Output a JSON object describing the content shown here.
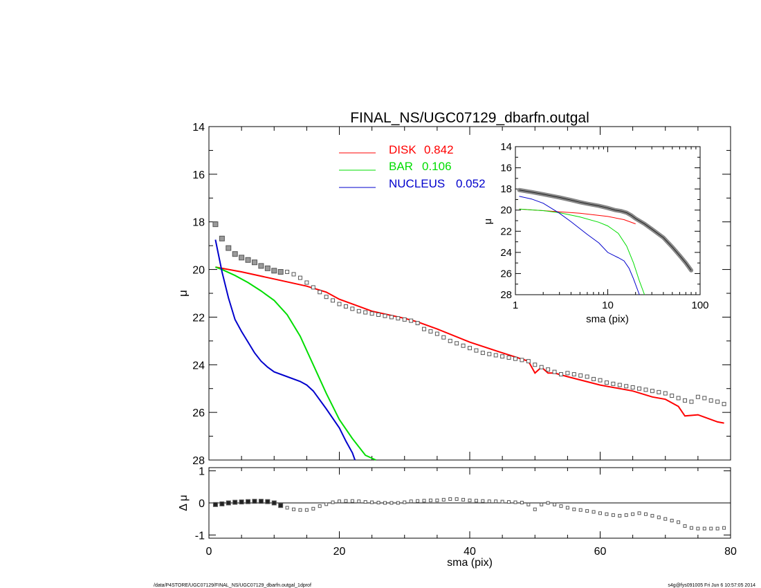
{
  "title": "FINAL_NS/UGC07129_dbarfn.outgal",
  "footer_left": "/data/P4STORE/UGC07129/FINAL_NS/UGC07129_dbarfn.outgal_1dprof",
  "footer_right": "s4g@fys091005  Fri Jun  6 10:57:05 2014",
  "colors": {
    "disk": "#ff0000",
    "bar": "#00dd00",
    "nucleus": "#0000cc",
    "data": "#555555"
  },
  "chart_data": [
    {
      "id": "main",
      "type": "line",
      "title": "FINAL_NS/UGC07129_dbarfn.outgal",
      "xlabel": "",
      "ylabel": "μ",
      "xlim": [
        0,
        80
      ],
      "ylim": [
        28,
        14
      ],
      "y_inverted": true,
      "x_ticks": [
        "0",
        "20",
        "40",
        "60",
        "80"
      ],
      "y_ticks": [
        "14",
        "16",
        "18",
        "20",
        "22",
        "24",
        "26",
        "28"
      ],
      "legend": [
        {
          "label": "DISK",
          "value": "0.842",
          "color": "#ff0000"
        },
        {
          "label": "BAR",
          "value": "0.106",
          "color": "#00dd00"
        },
        {
          "label": "NUCLEUS",
          "value": "0.052",
          "color": "#0000cc"
        }
      ],
      "series": [
        {
          "name": "DISK",
          "color": "#ff0000",
          "x": [
            1,
            5,
            10,
            15,
            18,
            20,
            25,
            30,
            32,
            35,
            40,
            45,
            49,
            50,
            51,
            52,
            53,
            55,
            60,
            65,
            68,
            70,
            72,
            73,
            75,
            78,
            79
          ],
          "y": [
            19.9,
            20.1,
            20.4,
            20.7,
            20.95,
            21.25,
            21.75,
            22.05,
            22.2,
            22.5,
            23.05,
            23.5,
            23.85,
            24.35,
            24.1,
            24.35,
            24.35,
            24.5,
            24.85,
            25.1,
            25.35,
            25.45,
            25.75,
            26.15,
            26.1,
            26.4,
            26.45
          ]
        },
        {
          "name": "BAR",
          "color": "#00dd00",
          "x": [
            1,
            2,
            4,
            6,
            8,
            10,
            12,
            14,
            16,
            18,
            20,
            22,
            24,
            25.6
          ],
          "y": [
            19.9,
            20.0,
            20.25,
            20.55,
            20.9,
            21.3,
            21.9,
            22.8,
            24.0,
            25.2,
            26.3,
            27.1,
            27.8,
            28.0
          ]
        },
        {
          "name": "NUCLEUS",
          "color": "#0000cc",
          "x": [
            1,
            2,
            3,
            4,
            5,
            6,
            7,
            8,
            9,
            10,
            12,
            14,
            15,
            16,
            18,
            20,
            21,
            22,
            22.4
          ],
          "y": [
            18.75,
            20.1,
            21.2,
            22.1,
            22.6,
            23.05,
            23.5,
            23.85,
            24.1,
            24.3,
            24.5,
            24.7,
            24.85,
            25.1,
            25.85,
            26.65,
            27.2,
            27.7,
            28.0
          ]
        },
        {
          "name": "data",
          "color": "#555555",
          "x": [
            1,
            2,
            3,
            4,
            5,
            6,
            7,
            8,
            9,
            10,
            11,
            12,
            13,
            14,
            15,
            16,
            17,
            18,
            19,
            20,
            21,
            22,
            23,
            24,
            25,
            26,
            27,
            28,
            29,
            30,
            31,
            32,
            33,
            34,
            35,
            36,
            37,
            38,
            39,
            40,
            41,
            42,
            43,
            44,
            45,
            46,
            47,
            48,
            49,
            50,
            51,
            52,
            53,
            54,
            55,
            56,
            57,
            58,
            59,
            60,
            61,
            62,
            63,
            64,
            65,
            66,
            67,
            68,
            69,
            70,
            71,
            72,
            73,
            74,
            75,
            76,
            77,
            78,
            79
          ],
          "y": [
            18.1,
            18.7,
            19.1,
            19.35,
            19.5,
            19.6,
            19.7,
            19.85,
            19.95,
            20.05,
            20.1,
            20.1,
            20.2,
            20.35,
            20.55,
            20.75,
            20.95,
            21.15,
            21.3,
            21.45,
            21.55,
            21.65,
            21.75,
            21.8,
            21.85,
            21.9,
            21.95,
            22.0,
            22.05,
            22.1,
            22.15,
            22.25,
            22.5,
            22.6,
            22.7,
            22.85,
            23.0,
            23.1,
            23.2,
            23.3,
            23.4,
            23.5,
            23.55,
            23.6,
            23.65,
            23.7,
            23.75,
            23.8,
            23.85,
            24.0,
            24.1,
            24.2,
            24.3,
            24.4,
            24.35,
            24.4,
            24.45,
            24.5,
            24.6,
            24.65,
            24.75,
            24.8,
            24.85,
            24.9,
            24.95,
            25.0,
            25.05,
            25.1,
            25.15,
            25.2,
            25.3,
            25.4,
            25.5,
            25.55,
            25.35,
            25.4,
            25.5,
            25.55,
            25.65
          ]
        }
      ]
    },
    {
      "id": "inset",
      "type": "line",
      "xlabel": "sma (pix)",
      "ylabel": "μ",
      "xscale": "log",
      "xlim": [
        1,
        100
      ],
      "ylim": [
        28,
        14
      ],
      "y_inverted": true,
      "x_ticks": [
        "1",
        "10",
        "100"
      ],
      "y_ticks": [
        "14",
        "16",
        "18",
        "20",
        "22",
        "24",
        "26",
        "28"
      ],
      "series": [
        {
          "name": "DISK",
          "color": "#ff0000",
          "x": [
            1.1,
            2,
            5,
            10,
            15,
            20
          ],
          "y": [
            19.9,
            20.05,
            20.3,
            20.6,
            20.9,
            21.3
          ]
        },
        {
          "name": "BAR",
          "color": "#00dd00",
          "x": [
            1.1,
            2,
            3,
            5,
            8,
            10,
            13,
            16,
            19,
            22,
            25
          ],
          "y": [
            19.9,
            20.05,
            20.25,
            20.65,
            21.15,
            21.5,
            22.2,
            23.4,
            25.0,
            26.7,
            28.0
          ]
        },
        {
          "name": "NUCLEUS",
          "color": "#0000cc",
          "x": [
            1.1,
            1.5,
            2,
            3,
            4,
            6,
            8,
            10,
            13,
            15,
            17,
            19,
            22
          ],
          "y": [
            18.7,
            18.95,
            19.35,
            20.3,
            21.1,
            22.3,
            23.1,
            24.0,
            24.5,
            24.8,
            25.5,
            26.5,
            28.0
          ]
        },
        {
          "name": "data",
          "color": "#555555",
          "x": [
            1.1,
            1.5,
            2,
            3,
            4,
            5,
            6,
            8,
            10,
            12,
            14,
            16,
            18,
            20,
            25,
            30,
            40,
            50,
            60,
            70,
            80
          ],
          "y": [
            18.1,
            18.3,
            18.5,
            18.8,
            19.05,
            19.25,
            19.4,
            19.6,
            19.8,
            20.0,
            20.1,
            20.25,
            20.5,
            20.8,
            21.3,
            21.8,
            22.6,
            23.5,
            24.3,
            25.0,
            25.7
          ]
        }
      ]
    },
    {
      "id": "residual",
      "type": "scatter",
      "xlabel": "sma (pix)",
      "ylabel": "Δ μ",
      "xlim": [
        0,
        80
      ],
      "ylim": [
        -1.1,
        1.1
      ],
      "x_ticks": [
        "0",
        "20",
        "40",
        "60",
        "80"
      ],
      "y_ticks": [
        "1",
        "0",
        "-1"
      ],
      "series": [
        {
          "name": "residual",
          "color": "#555555",
          "x": [
            1,
            2,
            3,
            4,
            5,
            6,
            7,
            8,
            9,
            10,
            11,
            12,
            13,
            14,
            15,
            16,
            17,
            18,
            19,
            20,
            21,
            22,
            23,
            24,
            25,
            26,
            27,
            28,
            29,
            30,
            31,
            32,
            33,
            34,
            35,
            36,
            37,
            38,
            39,
            40,
            41,
            42,
            43,
            44,
            45,
            46,
            47,
            48,
            49,
            50,
            51,
            52,
            53,
            54,
            55,
            56,
            57,
            58,
            59,
            60,
            61,
            62,
            63,
            64,
            65,
            66,
            67,
            68,
            69,
            70,
            71,
            72,
            73,
            74,
            75,
            76,
            77,
            78,
            79
          ],
          "y": [
            -0.05,
            -0.03,
            0.0,
            0.02,
            0.03,
            0.04,
            0.05,
            0.05,
            0.04,
            0.0,
            -0.08,
            -0.15,
            -0.2,
            -0.22,
            -0.22,
            -0.18,
            -0.1,
            -0.04,
            0.02,
            0.05,
            0.06,
            0.06,
            0.05,
            0.03,
            0.02,
            0.01,
            0.0,
            0.0,
            0.0,
            0.02,
            0.05,
            0.06,
            0.07,
            0.08,
            0.08,
            0.1,
            0.12,
            0.12,
            0.1,
            0.08,
            0.07,
            0.06,
            0.05,
            0.05,
            0.04,
            0.03,
            0.02,
            0.01,
            -0.05,
            -0.2,
            -0.05,
            0.0,
            -0.05,
            -0.1,
            -0.15,
            -0.2,
            -0.22,
            -0.25,
            -0.28,
            -0.32,
            -0.35,
            -0.38,
            -0.4,
            -0.38,
            -0.35,
            -0.32,
            -0.35,
            -0.4,
            -0.45,
            -0.5,
            -0.55,
            -0.6,
            -0.72,
            -0.78,
            -0.8,
            -0.8,
            -0.8,
            -0.8,
            -0.78
          ]
        }
      ]
    }
  ]
}
